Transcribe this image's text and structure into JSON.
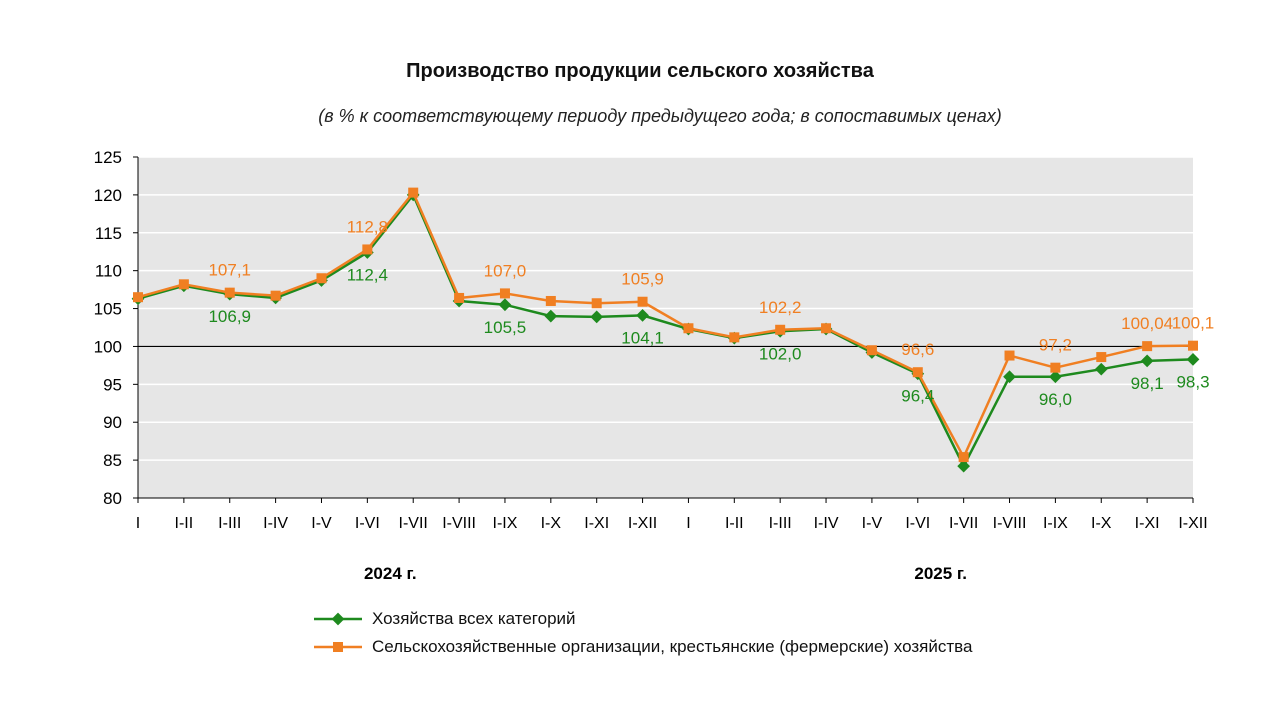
{
  "chart_data": {
    "type": "line",
    "title": "Производство продукции сельского хозяйства",
    "subtitle": "(в % к соответствующему периоду предыдущего года; в сопоставимых ценах)",
    "categories": [
      "I",
      "I-II",
      "I-III",
      "I-IV",
      "I-V",
      "I-VI",
      "I-VII",
      "I-VIII",
      "I-IX",
      "I-X",
      "I-XI",
      "I-XII",
      "I",
      "I-II",
      "I-III",
      "I-IV",
      "I-V",
      "I-VI",
      "I-VII",
      "I-VIII",
      "I-IX",
      "I-X",
      "I-XI",
      "I-XII"
    ],
    "year_labels": [
      {
        "label": "2024 г.",
        "center_index": 5.5
      },
      {
        "label": "2025 г.",
        "center_index": 17.5
      }
    ],
    "ylim": [
      80,
      125
    ],
    "yticks": [
      80,
      85,
      90,
      95,
      100,
      105,
      110,
      115,
      120,
      125
    ],
    "reference_line": 100,
    "series": [
      {
        "name": "Хозяйства всех категорий",
        "color": "#1e8a1e",
        "marker": "diamond",
        "values": [
          106.3,
          108.0,
          106.9,
          106.4,
          108.7,
          112.4,
          120.0,
          106.0,
          105.5,
          104.0,
          103.9,
          104.1,
          102.3,
          101.1,
          102.0,
          102.3,
          99.2,
          96.4,
          84.2,
          96.0,
          96.0,
          97.0,
          98.1,
          98.3
        ],
        "labels": [
          {
            "index": 2,
            "text": "106,9"
          },
          {
            "index": 5,
            "text": "112,4"
          },
          {
            "index": 8,
            "text": "105,5"
          },
          {
            "index": 11,
            "text": "104,1"
          },
          {
            "index": 14,
            "text": "102,0"
          },
          {
            "index": 17,
            "text": "96,4"
          },
          {
            "index": 20,
            "text": "96,0"
          },
          {
            "index": 22,
            "text": "98,1"
          },
          {
            "index": 23,
            "text": "98,3"
          }
        ]
      },
      {
        "name": "Сельскохозяйственные организации, крестьянские (фермерские) хозяйства",
        "color": "#f07f22",
        "marker": "square",
        "values": [
          106.5,
          108.2,
          107.1,
          106.7,
          109.0,
          112.8,
          120.3,
          106.4,
          107.0,
          106.0,
          105.7,
          105.9,
          102.4,
          101.2,
          102.2,
          102.4,
          99.5,
          96.6,
          85.4,
          98.8,
          97.2,
          98.6,
          100.04,
          100.1
        ],
        "labels": [
          {
            "index": 2,
            "text": "107,1"
          },
          {
            "index": 5,
            "text": "112,8"
          },
          {
            "index": 8,
            "text": "107,0"
          },
          {
            "index": 11,
            "text": "105,9"
          },
          {
            "index": 14,
            "text": "102,2"
          },
          {
            "index": 17,
            "text": "96,6"
          },
          {
            "index": 20,
            "text": "97,2"
          },
          {
            "index": 22,
            "text": "100,04"
          },
          {
            "index": 23,
            "text": "100,1"
          }
        ]
      }
    ]
  }
}
